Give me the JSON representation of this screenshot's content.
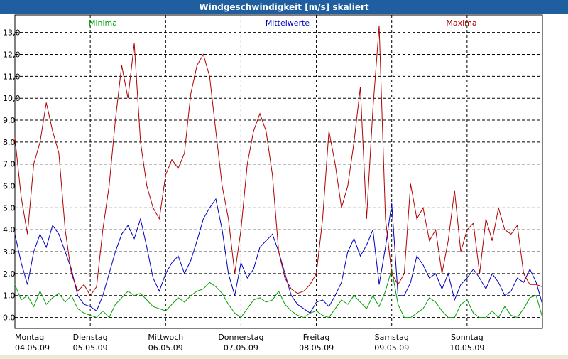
{
  "window": {
    "title": "Windgeschwindigkeit [m/s] skaliert"
  },
  "chart_data": {
    "type": "line",
    "title": "Windgeschwindigkeit [m/s] skaliert",
    "ylabel": "",
    "xlabel": "",
    "ylim": [
      -0.5,
      13.8
    ],
    "grid": true,
    "y_ticks": [
      "0,0",
      "1,0",
      "2,0",
      "3,0",
      "4,0",
      "5,0",
      "6,0",
      "7,0",
      "8,0",
      "9,0",
      "10,0",
      "11,0",
      "12,0",
      "13,0"
    ],
    "x_ticks": [
      {
        "day": "Montag",
        "date": "04.05.09"
      },
      {
        "day": "Dienstag",
        "date": "05.05.09"
      },
      {
        "day": "Mittwoch",
        "date": "06.05.09"
      },
      {
        "day": "Donnerstag",
        "date": "07.05.09"
      },
      {
        "day": "Freitag",
        "date": "08.05.09"
      },
      {
        "day": "Samstag",
        "date": "09.05.09"
      },
      {
        "day": "Sonntag",
        "date": "10.05.09"
      }
    ],
    "x_unit": "hours since 04.05.09 00:00",
    "series": [
      {
        "name": "Minima",
        "color": "#00a000",
        "x": [
          0,
          2,
          4,
          6,
          8,
          10,
          12,
          14,
          16,
          18,
          20,
          22,
          24,
          26,
          28,
          30,
          32,
          34,
          36,
          38,
          40,
          42,
          44,
          46,
          48,
          50,
          52,
          54,
          56,
          58,
          60,
          62,
          64,
          66,
          68,
          70,
          72,
          74,
          76,
          78,
          80,
          82,
          84,
          86,
          88,
          90,
          92,
          94,
          96,
          98,
          100,
          102,
          104,
          106,
          108,
          110,
          112,
          114,
          116,
          118,
          120,
          122,
          124,
          126,
          128,
          130,
          132,
          134,
          136,
          138,
          140,
          142,
          144,
          146,
          148,
          150,
          152,
          154,
          156,
          158,
          160,
          162,
          164,
          166,
          168
        ],
        "values": [
          1.5,
          0.8,
          1.0,
          0.5,
          1.2,
          0.6,
          0.9,
          1.1,
          0.7,
          1.0,
          0.4,
          0.2,
          0.1,
          0.0,
          0.3,
          0.0,
          0.6,
          0.9,
          1.2,
          1.0,
          1.1,
          0.8,
          0.5,
          0.4,
          0.3,
          0.6,
          0.9,
          0.7,
          1.0,
          1.2,
          1.3,
          1.6,
          1.4,
          1.1,
          0.6,
          0.2,
          0.0,
          0.4,
          0.8,
          0.9,
          0.7,
          0.8,
          1.2,
          0.6,
          0.3,
          0.1,
          0.0,
          0.2,
          0.3,
          0.1,
          0.0,
          0.4,
          0.8,
          0.6,
          1.0,
          0.7,
          0.4,
          1.0,
          0.5,
          1.2,
          2.2,
          0.6,
          0.0,
          0.0,
          0.2,
          0.4,
          0.9,
          0.7,
          0.3,
          0.0,
          0.0,
          0.6,
          0.8,
          0.2,
          0.0,
          0.0,
          0.3,
          0.0,
          0.5,
          0.1,
          0.0,
          0.4,
          0.9,
          1.0,
          0.0
        ]
      },
      {
        "name": "Mittelwerte",
        "color": "#0000c0",
        "x": [
          0,
          2,
          4,
          6,
          8,
          10,
          12,
          14,
          16,
          18,
          20,
          22,
          24,
          26,
          28,
          30,
          32,
          34,
          36,
          38,
          40,
          42,
          44,
          46,
          48,
          50,
          52,
          54,
          56,
          58,
          60,
          62,
          64,
          66,
          68,
          70,
          72,
          74,
          76,
          78,
          80,
          82,
          84,
          86,
          88,
          90,
          92,
          94,
          96,
          98,
          100,
          102,
          104,
          106,
          108,
          110,
          112,
          114,
          116,
          118,
          120,
          122,
          124,
          126,
          128,
          130,
          132,
          134,
          136,
          138,
          140,
          142,
          144,
          146,
          148,
          150,
          152,
          154,
          156,
          158,
          160,
          162,
          164,
          166,
          168
        ],
        "values": [
          3.8,
          2.5,
          1.5,
          3.0,
          3.8,
          3.2,
          4.2,
          3.8,
          3.0,
          2.2,
          1.0,
          0.6,
          0.5,
          0.3,
          1.0,
          2.0,
          3.0,
          3.8,
          4.2,
          3.6,
          4.5,
          3.2,
          1.8,
          1.2,
          2.0,
          2.5,
          2.8,
          2.0,
          2.6,
          3.5,
          4.5,
          5.0,
          5.4,
          4.0,
          2.0,
          1.0,
          2.5,
          1.8,
          2.2,
          3.2,
          3.5,
          3.8,
          3.0,
          2.0,
          1.0,
          0.6,
          0.4,
          0.2,
          0.7,
          0.8,
          0.5,
          1.0,
          1.6,
          3.0,
          3.6,
          2.8,
          3.3,
          4.0,
          1.5,
          3.2,
          5.2,
          1.0,
          1.0,
          1.6,
          2.8,
          2.4,
          1.8,
          2.0,
          1.3,
          2.0,
          0.8,
          1.5,
          1.8,
          2.2,
          1.8,
          1.3,
          2.0,
          1.6,
          1.0,
          1.2,
          1.8,
          1.6,
          2.2,
          1.6,
          0.6
        ]
      },
      {
        "name": "Maxima",
        "color": "#b00000",
        "x": [
          0,
          2,
          4,
          6,
          8,
          10,
          12,
          14,
          16,
          18,
          20,
          22,
          24,
          26,
          28,
          30,
          32,
          34,
          36,
          38,
          40,
          42,
          44,
          46,
          48,
          50,
          52,
          54,
          56,
          58,
          60,
          62,
          64,
          66,
          68,
          70,
          72,
          74,
          76,
          78,
          80,
          82,
          84,
          86,
          88,
          90,
          92,
          94,
          96,
          98,
          100,
          102,
          104,
          106,
          108,
          110,
          112,
          114,
          116,
          118,
          120,
          122,
          124,
          126,
          128,
          130,
          132,
          134,
          136,
          138,
          140,
          142,
          144,
          146,
          148,
          150,
          152,
          154,
          156,
          158,
          160,
          162,
          164,
          166,
          168
        ],
        "values": [
          8.2,
          5.5,
          3.8,
          7.0,
          8.0,
          9.8,
          8.5,
          7.5,
          4.0,
          2.0,
          1.2,
          1.5,
          1.0,
          1.4,
          4.0,
          6.0,
          9.0,
          11.5,
          10.0,
          12.5,
          8.0,
          6.0,
          5.0,
          4.5,
          6.5,
          7.2,
          6.8,
          7.5,
          10.2,
          11.5,
          12.0,
          11.0,
          8.5,
          6.0,
          4.5,
          2.0,
          4.0,
          7.0,
          8.5,
          9.3,
          8.5,
          6.5,
          3.0,
          1.8,
          1.3,
          1.1,
          1.2,
          1.5,
          2.0,
          4.5,
          8.5,
          7.0,
          5.0,
          6.0,
          8.0,
          10.5,
          4.5,
          9.5,
          13.3,
          4.5,
          2.0,
          1.5,
          2.0,
          6.1,
          4.5,
          5.0,
          3.5,
          4.0,
          2.0,
          3.5,
          5.8,
          3.0,
          4.0,
          4.3,
          2.0,
          4.5,
          3.5,
          5.0,
          4.0,
          3.8,
          4.2,
          2.0,
          1.5,
          1.5,
          1.4
        ]
      }
    ]
  }
}
